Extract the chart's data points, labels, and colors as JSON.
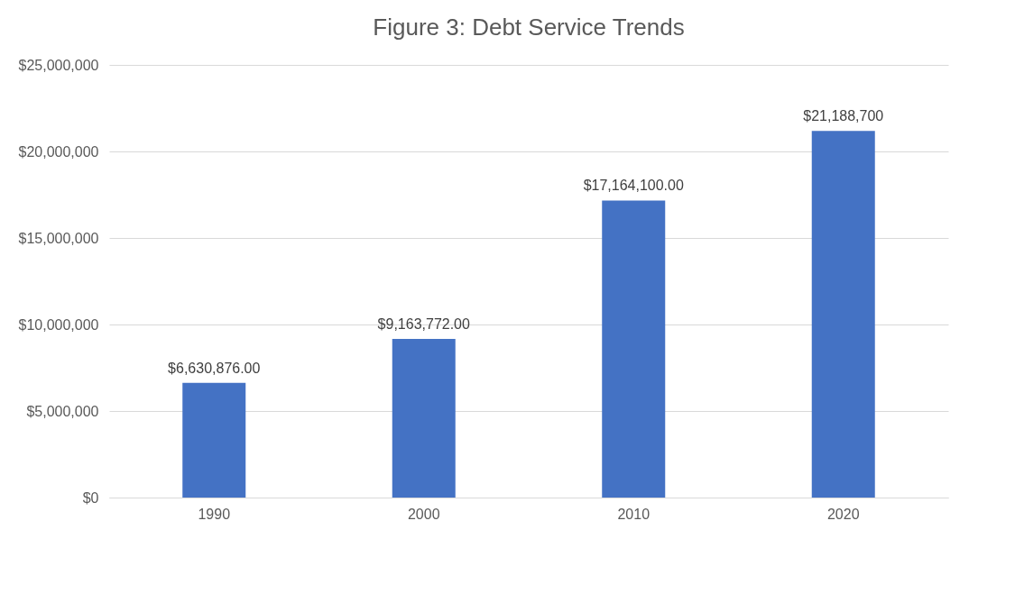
{
  "chart_data": {
    "type": "bar",
    "title": "Figure 3: Debt Service Trends",
    "categories": [
      "1990",
      "2000",
      "2010",
      "2020"
    ],
    "values": [
      6630876,
      9163772,
      17164100,
      21188700
    ],
    "value_labels": [
      "$6,630,876.00",
      "$9,163,772.00",
      "$17,164,100.00",
      "$21,188,700"
    ],
    "color": "#4472c4",
    "ylim": [
      0,
      25000000
    ],
    "yticks": [
      {
        "value": 0,
        "label": "$0"
      },
      {
        "value": 5000000,
        "label": "$5,000,000"
      },
      {
        "value": 10000000,
        "label": "$10,000,000"
      },
      {
        "value": 15000000,
        "label": "$15,000,000"
      },
      {
        "value": 20000000,
        "label": "$20,000,000"
      },
      {
        "value": 25000000,
        "label": "$25,000,000"
      }
    ],
    "grid": "y"
  }
}
